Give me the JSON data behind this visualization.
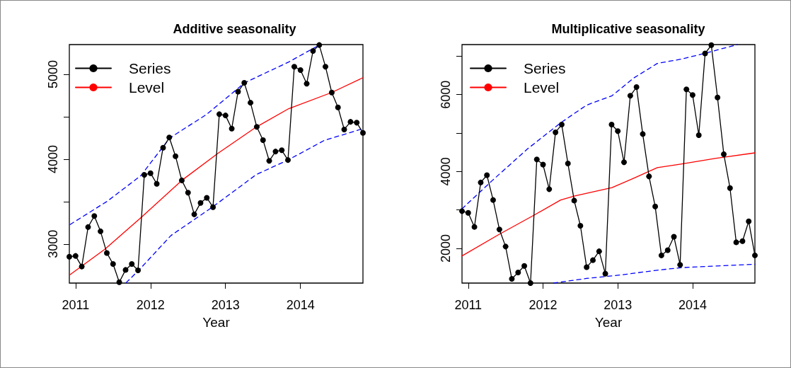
{
  "chart_data": [
    {
      "type": "line",
      "title": "Additive seasonality",
      "xlabel": "Year",
      "legend": "top left",
      "grid": false,
      "xlim": [
        2010.917,
        2014.833
      ],
      "xticks": [
        2011,
        2012,
        2013,
        2014
      ],
      "ylim": [
        2540,
        5350
      ],
      "yticks": [
        3000,
        {
          "value": 3500,
          "label": null
        },
        4000,
        {
          "value": 4500,
          "label": null
        },
        5000
      ],
      "x": [
        2010.917,
        2011,
        2011.083,
        2011.167,
        2011.25,
        2011.333,
        2011.417,
        2011.5,
        2011.583,
        2011.667,
        2011.75,
        2011.833,
        2011.917,
        2012,
        2012.083,
        2012.167,
        2012.25,
        2012.333,
        2012.417,
        2012.5,
        2012.583,
        2012.667,
        2012.75,
        2012.833,
        2012.917,
        2013,
        2013.083,
        2013.167,
        2013.25,
        2013.333,
        2013.417,
        2013.5,
        2013.583,
        2013.667,
        2013.75,
        2013.833,
        2013.917,
        2014,
        2014.083,
        2014.167,
        2014.25,
        2014.333,
        2014.417,
        2014.5,
        2014.583,
        2014.667,
        2014.75,
        2014.833
      ],
      "series": [
        {
          "name": "Series",
          "color": "#000000",
          "marker": "circle",
          "line_style": "solid",
          "values": [
            2850,
            2860,
            2735,
            3200,
            3330,
            3150,
            2895,
            2765,
            2550,
            2695,
            2765,
            2690,
            3815,
            3835,
            3710,
            4135,
            4255,
            4035,
            3750,
            3605,
            3350,
            3485,
            3545,
            3435,
            4530,
            4515,
            4360,
            4795,
            4900,
            4665,
            4380,
            4225,
            3980,
            4090,
            4105,
            3990,
            5090,
            5050,
            4890,
            5275,
            5345,
            5090,
            4785,
            4610,
            4350,
            4440,
            4430,
            4310
          ]
        },
        {
          "name": "Level",
          "color": "#ff0000",
          "marker": "none",
          "line_style": "solid",
          "x": [
            2010.928,
            2011.393,
            2011.87,
            2012.417,
            2012.901,
            2013.413,
            2013.843,
            2014.415,
            2014.833
          ],
          "values": [
            2640,
            2940,
            3310,
            3750,
            4070,
            4380,
            4595,
            4785,
            4960
          ]
        },
        {
          "color": "#0000ff",
          "marker": "none",
          "line_style": "dashed",
          "x": [
            2010.928,
            2011.424,
            2011.87,
            2012.257,
            2012.744,
            2013.256,
            2013.843,
            2014.252
          ],
          "values": [
            3230,
            3505,
            3805,
            4250,
            4525,
            4900,
            5145,
            5345
          ]
        },
        {
          "color": "#0000ff",
          "marker": "none",
          "line_style": "dashed",
          "x": [
            2011.675,
            2011.842,
            2012.272,
            2012.825,
            2013.413,
            2013.834,
            2014.315,
            2014.833
          ],
          "values": [
            2545,
            2690,
            3100,
            3435,
            3820,
            3990,
            4220,
            4360
          ]
        }
      ]
    },
    {
      "type": "line",
      "title": "Multiplicative seasonality",
      "xlabel": "Year",
      "legend": "top left",
      "grid": false,
      "xlim": [
        2010.917,
        2014.833
      ],
      "xticks": [
        2011,
        2012,
        2013,
        2014
      ],
      "ylim": [
        1100,
        7300
      ],
      "yticks": [
        2000,
        {
          "value": 3000,
          "label": null
        },
        4000,
        {
          "value": 5000,
          "label": null
        },
        6000,
        {
          "value": 7000,
          "label": null
        }
      ],
      "x": [
        2010.917,
        2011,
        2011.083,
        2011.167,
        2011.25,
        2011.333,
        2011.417,
        2011.5,
        2011.583,
        2011.667,
        2011.75,
        2011.833,
        2011.917,
        2012,
        2012.083,
        2012.167,
        2012.25,
        2012.333,
        2012.417,
        2012.5,
        2012.583,
        2012.667,
        2012.75,
        2012.833,
        2012.917,
        2013,
        2013.083,
        2013.167,
        2013.25,
        2013.333,
        2013.417,
        2013.5,
        2013.583,
        2013.667,
        2013.75,
        2013.833,
        2013.917,
        2014,
        2014.083,
        2014.167,
        2014.25,
        2014.333,
        2014.417,
        2014.5,
        2014.583,
        2014.667,
        2014.75,
        2014.833
      ],
      "series": [
        {
          "name": "Series",
          "color": "#000000",
          "marker": "circle",
          "line_style": "solid",
          "values": [
            2970,
            2925,
            2560,
            3715,
            3905,
            3260,
            2495,
            2050,
            1210,
            1375,
            1545,
            1100,
            4315,
            4180,
            3540,
            5020,
            5220,
            4210,
            3245,
            2590,
            1515,
            1695,
            1925,
            1345,
            5220,
            5050,
            4240,
            5970,
            6195,
            4975,
            3875,
            3090,
            1820,
            1955,
            2305,
            1575,
            6135,
            5990,
            4945,
            7070,
            7285,
            5925,
            4450,
            3570,
            2160,
            2190,
            2705,
            1820
          ]
        },
        {
          "name": "Level",
          "color": "#ff0000",
          "marker": "none",
          "line_style": "solid",
          "x": [
            2010.917,
            2011.416,
            2011.889,
            2012.235,
            2012.424,
            2012.922,
            2013.212,
            2013.528,
            2013.843,
            2014.315,
            2014.833
          ],
          "values": [
            1805,
            2370,
            2875,
            3260,
            3365,
            3580,
            3825,
            4100,
            4195,
            4345,
            4485
          ]
        },
        {
          "color": "#0000ff",
          "marker": "none",
          "line_style": "dashed",
          "x": [
            2010.917,
            2011.321,
            2011.794,
            2012.235,
            2012.582,
            2012.922,
            2013.212,
            2013.528,
            2013.843,
            2014.158,
            2014.599
          ],
          "values": [
            3030,
            3765,
            4590,
            5265,
            5725,
            5970,
            6430,
            6810,
            6920,
            7070,
            7300
          ]
        },
        {
          "color": "#0000ff",
          "marker": "none",
          "line_style": "dashed",
          "x": [
            2012.141,
            2012.582,
            2013.055,
            2013.528,
            2013.843,
            2014.315,
            2014.833
          ],
          "values": [
            1100,
            1220,
            1315,
            1435,
            1500,
            1545,
            1590
          ]
        }
      ]
    }
  ]
}
